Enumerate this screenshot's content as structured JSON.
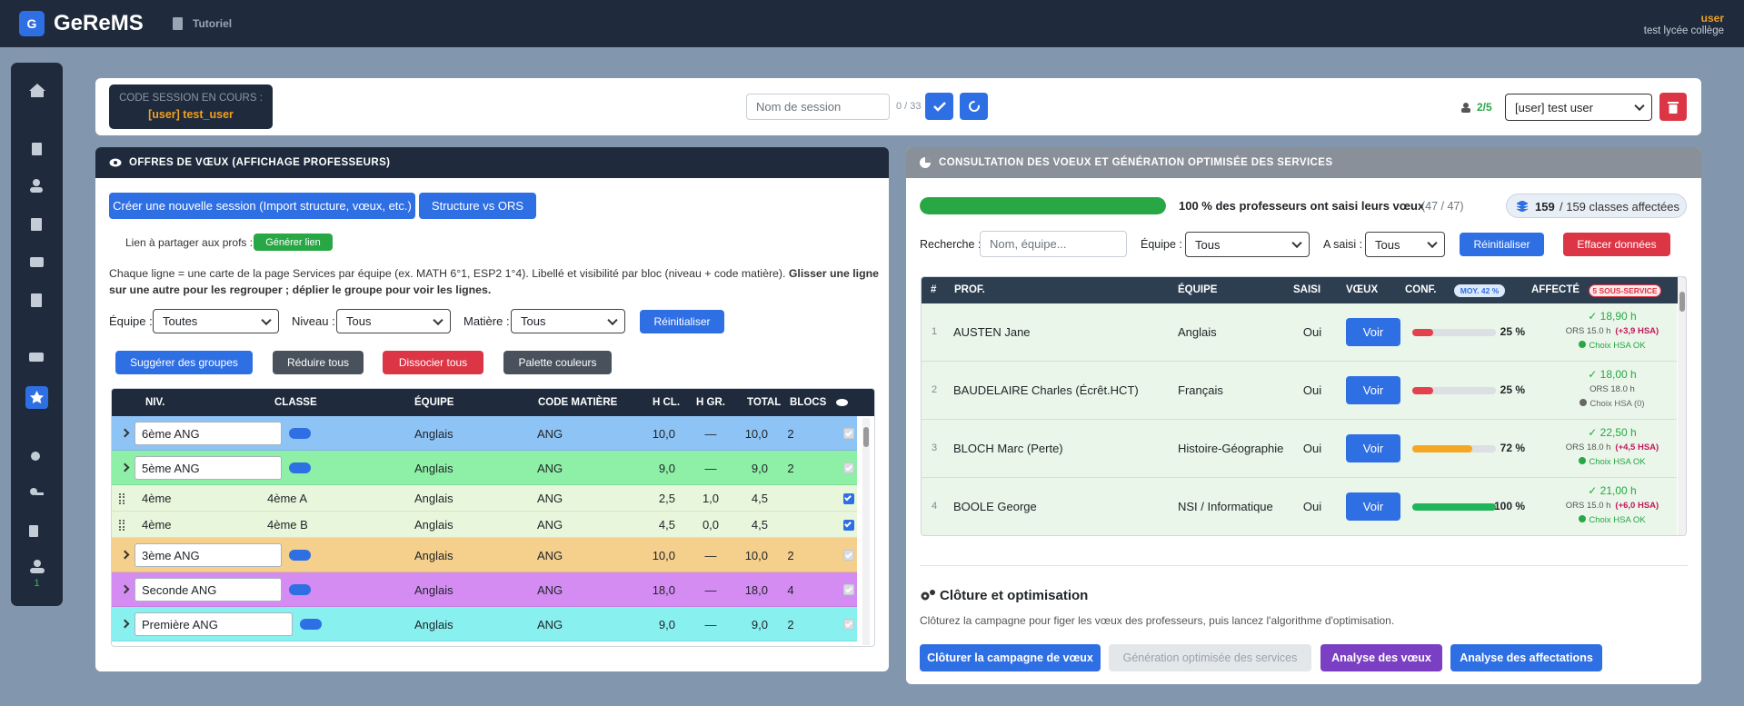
{
  "header": {
    "logo": "G",
    "app_name": "GeReMS",
    "page": "Tutoriel",
    "user": "user",
    "school": "test lycée collège"
  },
  "sidebar": {
    "badge": "1"
  },
  "session_bar": {
    "code_label": "CODE SESSION EN COURS :",
    "code_value": "[user] test_user",
    "name_placeholder": "Nom de session",
    "name_counter": "0 / 33",
    "users_count": "2/5",
    "user_select": "[user] test user"
  },
  "offers": {
    "title": "OFFRES DE VŒUX (AFFICHAGE PROFESSEURS)",
    "buttons": [
      "Créer une nouvelle session (Import structure, vœux, etc.)",
      "Structure vs ORS"
    ],
    "share_label": "Lien à partager aux profs :",
    "share_button": "Générer lien",
    "description": "Chaque ligne = une carte de la page Services par équipe (ex. MATH 6°1, ESP2 1°4). Libellé et visibilité par bloc (niveau + code matière). ",
    "description_bold": "Glisser une ligne sur une autre pour les regrouper ; déplier le groupe pour voir les lignes.",
    "filters": [
      {
        "label": "Équipe :",
        "value": "Toutes"
      },
      {
        "label": "Niveau :",
        "value": "Tous"
      },
      {
        "label": "Matière :",
        "value": "Tous"
      }
    ],
    "reset": "Réinitialiser",
    "actions": [
      "Suggérer des groupes",
      "Réduire tous",
      "Dissocier tous",
      "Palette couleurs"
    ],
    "table": {
      "headers": [
        "NIV.",
        "CLASSE",
        "ÉQUIPE",
        "CODE MATIÈRE",
        "H CL.",
        "H GR.",
        "TOTAL",
        "BLOCS"
      ],
      "rows": [
        {
          "kind": "group",
          "color": "#8ec3f5",
          "label": "6ème  ANG",
          "equipe": "Anglais",
          "code": "ANG",
          "h_cl": "10,0",
          "h_gr": "—",
          "total": "10,0",
          "blocs": "2",
          "visible": true
        },
        {
          "kind": "group",
          "color": "#8ef0a6",
          "label": "5ème  ANG",
          "equipe": "Anglais",
          "code": "ANG",
          "h_cl": "9,0",
          "h_gr": "—",
          "total": "9,0",
          "blocs": "2",
          "visible": true
        },
        {
          "kind": "item",
          "color": "#e8f7dc",
          "niveau": "4ème",
          "classe": "4ème A",
          "equipe": "Anglais",
          "code": "ANG",
          "h_cl": "2,5",
          "h_gr": "1,0",
          "total": "4,5",
          "visible": true
        },
        {
          "kind": "item",
          "color": "#e8f7dc",
          "niveau": "4ème",
          "classe": "4ème B",
          "equipe": "Anglais",
          "code": "ANG",
          "h_cl": "4,5",
          "h_gr": "0,0",
          "total": "4,5",
          "visible": true
        },
        {
          "kind": "group",
          "color": "#f5cf8c",
          "label": "3ème  ANG",
          "equipe": "Anglais",
          "code": "ANG",
          "h_cl": "10,0",
          "h_gr": "—",
          "total": "10,0",
          "blocs": "2",
          "visible": true
        },
        {
          "kind": "group",
          "color": "#d48cf3",
          "label": "Seconde  ANG",
          "equipe": "Anglais",
          "code": "ANG",
          "h_cl": "18,0",
          "h_gr": "—",
          "total": "18,0",
          "blocs": "4",
          "visible": true
        },
        {
          "kind": "group",
          "color": "#88f0ef",
          "label": "Première  ANG",
          "equipe": "Anglais",
          "code": "ANG",
          "h_cl": "9,0",
          "h_gr": "—",
          "total": "9,0",
          "blocs": "2",
          "visible": true
        }
      ]
    }
  },
  "consultation": {
    "title": "CONSULTATION DES VOEUX ET GÉNÉRATION OPTIMISÉE DES SERVICES",
    "progress": {
      "value": 100,
      "label": "100 % des professeurs ont saisi leurs vœux"
    },
    "progress_count": "(47 / 47)",
    "assigned": "159",
    "assigned_text": "/ 159 classes affectées",
    "search_label": "Recherche :",
    "search_placeholder": "Nom, équipe...",
    "filters": [
      {
        "label": "Équipe :",
        "value": "Tous"
      },
      {
        "label": "A saisi :",
        "value": "Tous"
      }
    ],
    "reset": "Réinitialiser",
    "clear": "Effacer données",
    "table": {
      "headers": [
        "#",
        "PROF.",
        "ÉQUIPE",
        "SAISI",
        "VŒUX",
        "CONF.",
        "AFFECTÉ"
      ],
      "conf_badge": "MOY. 42 %",
      "affecte_badge": "5 SOUS-SERVICE",
      "rows": [
        {
          "num": 1,
          "prof": "AUSTEN Jane",
          "equipe": "Anglais",
          "saisi": "Oui",
          "voeux": "Voir",
          "conf": {
            "value": 25,
            "label": "25 %"
          },
          "conf_color": "#e5404e",
          "hours": "✓ 18,90 h",
          "ors": "ORS 15.0 h",
          "hsa": "(+3,9 HSA)",
          "choice": "Choix HSA OK",
          "choice_ok": true
        },
        {
          "num": 2,
          "prof": "BAUDELAIRE Charles (Écrêt.HCT)",
          "equipe": "Français",
          "saisi": "Oui",
          "voeux": "Voir",
          "conf": {
            "value": 25,
            "label": "25 %"
          },
          "conf_color": "#e5404e",
          "hours": "✓ 18,00 h",
          "ors": "ORS 18.0 h",
          "choice": "Choix HSA (0)",
          "choice_ok": false
        },
        {
          "num": 3,
          "prof": "BLOCH Marc (Perte)",
          "equipe": "Histoire-Géographie",
          "saisi": "Oui",
          "voeux": "Voir",
          "conf": {
            "value": 72,
            "label": "72 %"
          },
          "conf_color": "#f5a623",
          "hours": "✓ 22,50 h",
          "ors": "ORS 18.0 h",
          "hsa": "(+4,5 HSA)",
          "choice": "Choix HSA OK",
          "choice_ok": true
        },
        {
          "num": 4,
          "prof": "BOOLE George",
          "equipe": "NSI / Informatique",
          "saisi": "Oui",
          "voeux": "Voir",
          "conf": {
            "value": 100,
            "label": "100 %"
          },
          "conf_color": "#22b45a",
          "hours": "✓ 21,00 h",
          "ors": "ORS 15.0 h",
          "hsa": "(+6,0 HSA)",
          "choice": "Choix HSA OK",
          "choice_ok": true
        }
      ]
    }
  },
  "closure": {
    "title": "Clôture et optimisation",
    "text": "Clôturez la campagne pour figer les vœux des professeurs, puis lancez l'algorithme d'optimisation.",
    "buttons": [
      "Clôturer la campagne de vœux",
      "Génération optimisée des services",
      "Analyse des vœux",
      "Analyse des affectations"
    ]
  }
}
